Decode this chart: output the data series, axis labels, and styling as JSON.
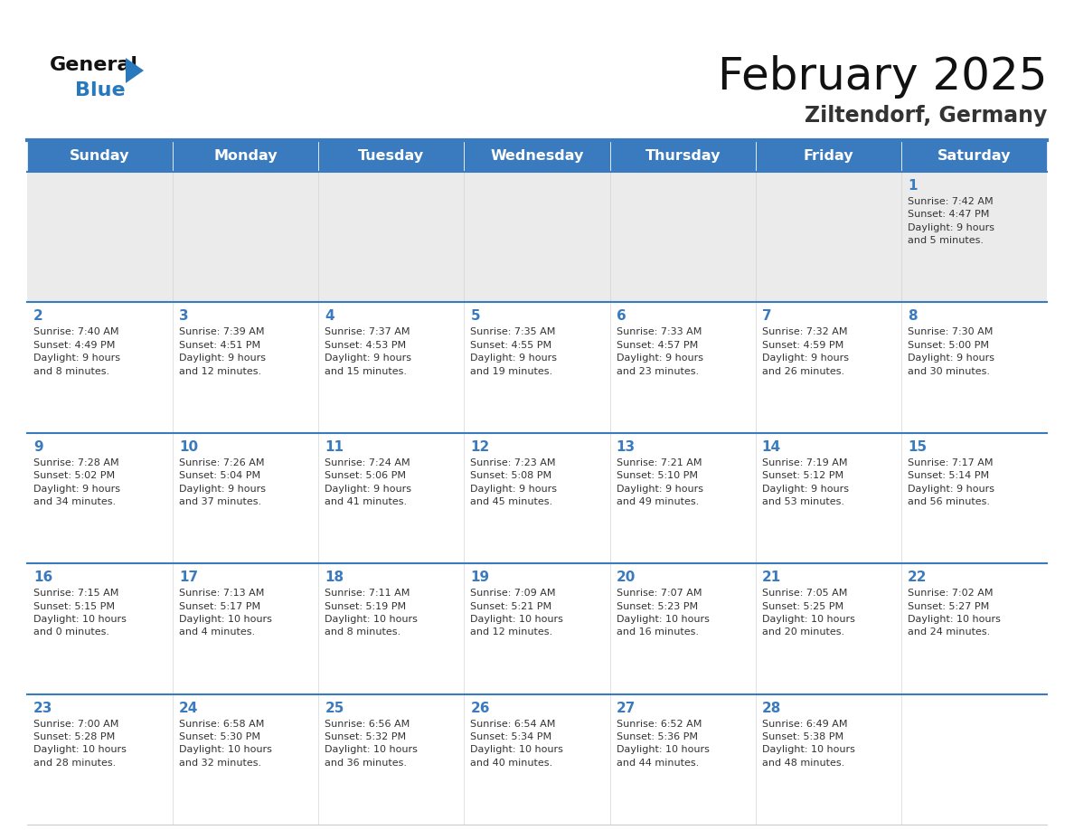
{
  "title": "February 2025",
  "subtitle": "Ziltendorf, Germany",
  "days_of_week": [
    "Sunday",
    "Monday",
    "Tuesday",
    "Wednesday",
    "Thursday",
    "Friday",
    "Saturday"
  ],
  "header_bg": "#3a7abf",
  "header_text": "#ffffff",
  "cell_bg_light": "#ebebeb",
  "cell_bg_white": "#ffffff",
  "day_num_color": "#3a7abf",
  "text_color": "#333333",
  "border_color": "#3a7abf",
  "logo_black": "#1a1a1a",
  "logo_blue": "#2878be",
  "weeks": [
    [
      {
        "day": null,
        "info": null
      },
      {
        "day": null,
        "info": null
      },
      {
        "day": null,
        "info": null
      },
      {
        "day": null,
        "info": null
      },
      {
        "day": null,
        "info": null
      },
      {
        "day": null,
        "info": null
      },
      {
        "day": 1,
        "info": "Sunrise: 7:42 AM\nSunset: 4:47 PM\nDaylight: 9 hours\nand 5 minutes."
      }
    ],
    [
      {
        "day": 2,
        "info": "Sunrise: 7:40 AM\nSunset: 4:49 PM\nDaylight: 9 hours\nand 8 minutes."
      },
      {
        "day": 3,
        "info": "Sunrise: 7:39 AM\nSunset: 4:51 PM\nDaylight: 9 hours\nand 12 minutes."
      },
      {
        "day": 4,
        "info": "Sunrise: 7:37 AM\nSunset: 4:53 PM\nDaylight: 9 hours\nand 15 minutes."
      },
      {
        "day": 5,
        "info": "Sunrise: 7:35 AM\nSunset: 4:55 PM\nDaylight: 9 hours\nand 19 minutes."
      },
      {
        "day": 6,
        "info": "Sunrise: 7:33 AM\nSunset: 4:57 PM\nDaylight: 9 hours\nand 23 minutes."
      },
      {
        "day": 7,
        "info": "Sunrise: 7:32 AM\nSunset: 4:59 PM\nDaylight: 9 hours\nand 26 minutes."
      },
      {
        "day": 8,
        "info": "Sunrise: 7:30 AM\nSunset: 5:00 PM\nDaylight: 9 hours\nand 30 minutes."
      }
    ],
    [
      {
        "day": 9,
        "info": "Sunrise: 7:28 AM\nSunset: 5:02 PM\nDaylight: 9 hours\nand 34 minutes."
      },
      {
        "day": 10,
        "info": "Sunrise: 7:26 AM\nSunset: 5:04 PM\nDaylight: 9 hours\nand 37 minutes."
      },
      {
        "day": 11,
        "info": "Sunrise: 7:24 AM\nSunset: 5:06 PM\nDaylight: 9 hours\nand 41 minutes."
      },
      {
        "day": 12,
        "info": "Sunrise: 7:23 AM\nSunset: 5:08 PM\nDaylight: 9 hours\nand 45 minutes."
      },
      {
        "day": 13,
        "info": "Sunrise: 7:21 AM\nSunset: 5:10 PM\nDaylight: 9 hours\nand 49 minutes."
      },
      {
        "day": 14,
        "info": "Sunrise: 7:19 AM\nSunset: 5:12 PM\nDaylight: 9 hours\nand 53 minutes."
      },
      {
        "day": 15,
        "info": "Sunrise: 7:17 AM\nSunset: 5:14 PM\nDaylight: 9 hours\nand 56 minutes."
      }
    ],
    [
      {
        "day": 16,
        "info": "Sunrise: 7:15 AM\nSunset: 5:15 PM\nDaylight: 10 hours\nand 0 minutes."
      },
      {
        "day": 17,
        "info": "Sunrise: 7:13 AM\nSunset: 5:17 PM\nDaylight: 10 hours\nand 4 minutes."
      },
      {
        "day": 18,
        "info": "Sunrise: 7:11 AM\nSunset: 5:19 PM\nDaylight: 10 hours\nand 8 minutes."
      },
      {
        "day": 19,
        "info": "Sunrise: 7:09 AM\nSunset: 5:21 PM\nDaylight: 10 hours\nand 12 minutes."
      },
      {
        "day": 20,
        "info": "Sunrise: 7:07 AM\nSunset: 5:23 PM\nDaylight: 10 hours\nand 16 minutes."
      },
      {
        "day": 21,
        "info": "Sunrise: 7:05 AM\nSunset: 5:25 PM\nDaylight: 10 hours\nand 20 minutes."
      },
      {
        "day": 22,
        "info": "Sunrise: 7:02 AM\nSunset: 5:27 PM\nDaylight: 10 hours\nand 24 minutes."
      }
    ],
    [
      {
        "day": 23,
        "info": "Sunrise: 7:00 AM\nSunset: 5:28 PM\nDaylight: 10 hours\nand 28 minutes."
      },
      {
        "day": 24,
        "info": "Sunrise: 6:58 AM\nSunset: 5:30 PM\nDaylight: 10 hours\nand 32 minutes."
      },
      {
        "day": 25,
        "info": "Sunrise: 6:56 AM\nSunset: 5:32 PM\nDaylight: 10 hours\nand 36 minutes."
      },
      {
        "day": 26,
        "info": "Sunrise: 6:54 AM\nSunset: 5:34 PM\nDaylight: 10 hours\nand 40 minutes."
      },
      {
        "day": 27,
        "info": "Sunrise: 6:52 AM\nSunset: 5:36 PM\nDaylight: 10 hours\nand 44 minutes."
      },
      {
        "day": 28,
        "info": "Sunrise: 6:49 AM\nSunset: 5:38 PM\nDaylight: 10 hours\nand 48 minutes."
      },
      {
        "day": null,
        "info": null
      }
    ]
  ]
}
